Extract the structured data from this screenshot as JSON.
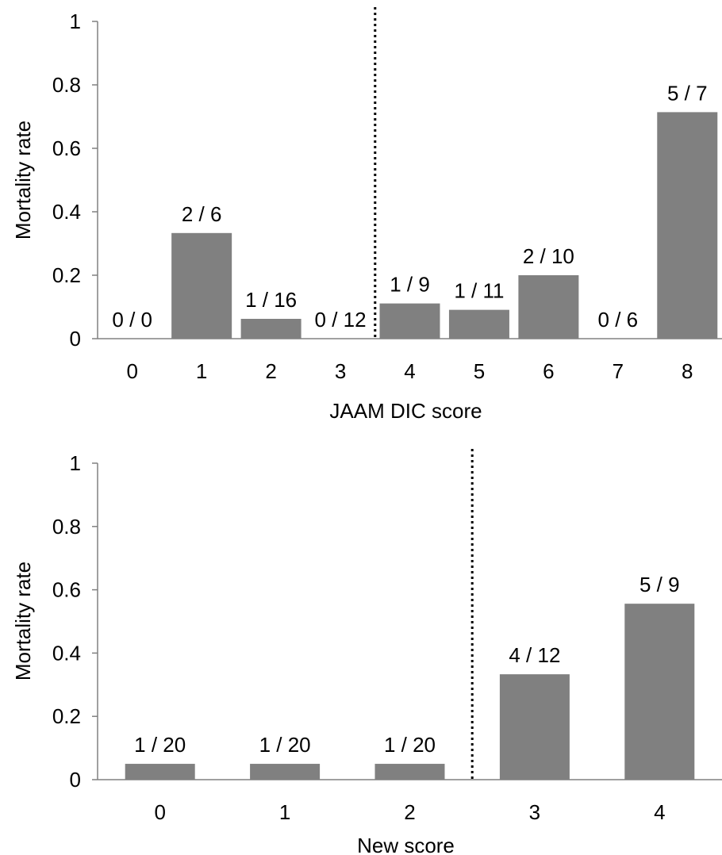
{
  "colors": {
    "bar": "#808080",
    "axis": "#808080",
    "text": "#000000",
    "divider": "#000000"
  },
  "chart_data": [
    {
      "type": "bar",
      "categories": [
        "0",
        "1",
        "2",
        "3",
        "4",
        "5",
        "6",
        "7",
        "8"
      ],
      "values": [
        0,
        0.333,
        0.0625,
        0,
        0.111,
        0.0909,
        0.2,
        0,
        0.714
      ],
      "data_labels": [
        "0 / 0",
        "2 / 6",
        "1 / 16",
        "0 / 12",
        "1 / 9",
        "1 / 11",
        "2 / 10",
        "0 / 6",
        "5 / 7"
      ],
      "xlabel": "JAAM DIC score",
      "ylabel": "Mortality rate",
      "ylim": [
        0,
        1
      ],
      "yticks": [
        "0",
        "0.2",
        "0.4",
        "0.6",
        "0.8",
        "1"
      ],
      "divider_between": [
        3,
        4
      ],
      "grid": false
    },
    {
      "type": "bar",
      "categories": [
        "0",
        "1",
        "2",
        "3",
        "4"
      ],
      "values": [
        0.05,
        0.05,
        0.05,
        0.333,
        0.556
      ],
      "data_labels": [
        "1 / 20",
        "1 / 20",
        "1 / 20",
        "4 / 12",
        "5 / 9"
      ],
      "xlabel": "New score",
      "ylabel": "Mortality rate",
      "ylim": [
        0,
        1
      ],
      "yticks": [
        "0",
        "0.2",
        "0.4",
        "0.6",
        "0.8",
        "1"
      ],
      "divider_between": [
        2,
        3
      ],
      "grid": false
    }
  ]
}
